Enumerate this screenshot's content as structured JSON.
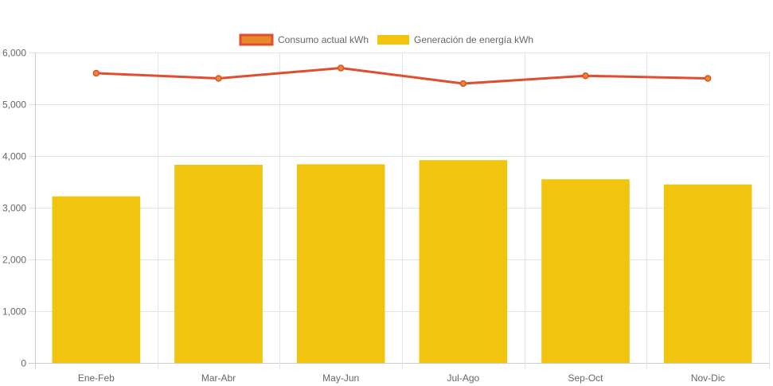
{
  "chart_data": {
    "type": "bar",
    "categories": [
      "Ene-Feb",
      "Mar-Abr",
      "May-Jun",
      "Jul-Ago",
      "Sep-Oct",
      "Nov-Dic"
    ],
    "series": [
      {
        "name": "Consumo actual kWh",
        "type": "line",
        "color": "#e04e2f",
        "point_color": "#e8892b",
        "values": [
          5600,
          5500,
          5700,
          5400,
          5550,
          5500
        ]
      },
      {
        "name": "Generación de energía kWh",
        "type": "bar",
        "color": "#f1c40f",
        "values": [
          3220,
          3830,
          3840,
          3920,
          3550,
          3450
        ]
      }
    ],
    "y_ticks": [
      "0",
      "1,000",
      "2,000",
      "3,000",
      "4,000",
      "5,000",
      "6,000"
    ],
    "ylim": [
      0,
      6000
    ],
    "grid": true,
    "legend_position": "top-center",
    "title": "",
    "xlabel": "",
    "ylabel": ""
  }
}
